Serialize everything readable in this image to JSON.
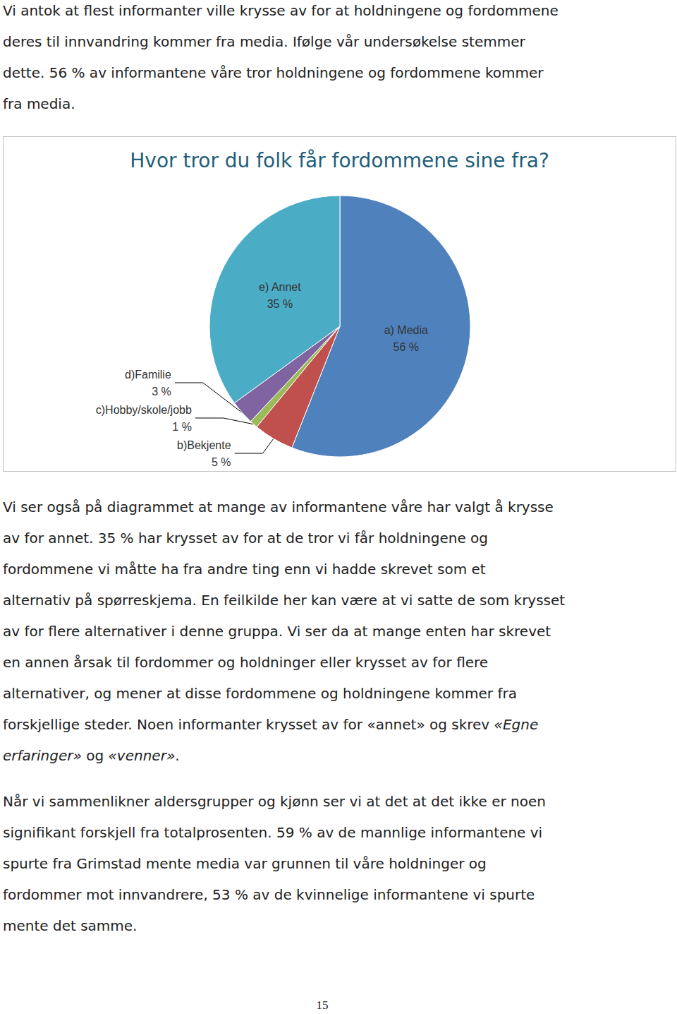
{
  "paragraphs_top": [
    [
      "Vi antok at flest informanter ville krysse av for at holdningene og fordommene",
      "deres til innvandring kommer fra media. Ifølge vår undersøkelse stemmer",
      "dette. 56 % av informantene våre tror holdningene og fordommene kommer",
      "fra media."
    ]
  ],
  "chart_data": {
    "type": "pie",
    "title": "Hvor tror du folk får fordommene sine fra?",
    "categories": [
      "a) Media",
      "b)Bekjente",
      "c)Hobby/skole/jobb",
      "d)Familie",
      "e) Annet"
    ],
    "values": [
      56,
      5,
      1,
      3,
      35
    ],
    "value_labels": [
      "56 %",
      "5 %",
      "1 %",
      "3 %",
      "35 %"
    ],
    "colors": [
      "#4f81bd",
      "#c0504d",
      "#9bbb59",
      "#8064a2",
      "#4bacc6"
    ],
    "data_labels": true
  },
  "paragraphs_bottom": [
    [
      "Vi ser også på diagrammet at mange av informantene våre har valgt å krysse",
      "av for annet. 35 % har krysset av for at de tror vi får holdningene og",
      "fordommene vi måtte ha fra andre ting enn vi hadde skrevet som et",
      "alternativ på spørreskjema. En feilkilde her kan være at vi satte de som krysset",
      "av for flere alternativer i denne gruppa. Vi ser da at mange enten har skrevet",
      "en annen årsak til fordommer og holdninger eller krysset av for flere",
      "alternativer, og mener at disse fordommene og holdningene kommer fra",
      [
        {
          "text": "forskjellige steder. Noen informanter krysset av for «annet» og skrev "
        },
        {
          "text": "«Egne",
          "italic": true
        }
      ],
      [
        {
          "text": "erfaringer»",
          "italic": true
        },
        {
          "text": " og "
        },
        {
          "text": "«venner»",
          "italic": true
        },
        {
          "text": "."
        }
      ]
    ],
    [
      "Når vi sammenlikner aldersgrupper og kjønn ser vi at det at det ikke er noen",
      "signifikant forskjell fra totalprosenten. 59 % av de mannlige informantene vi",
      "spurte fra Grimstad mente media var grunnen til våre holdninger og",
      "fordommer mot innvandrere, 53 % av de kvinnelige informantene vi spurte",
      "mente det samme."
    ]
  ],
  "page_number": 15
}
